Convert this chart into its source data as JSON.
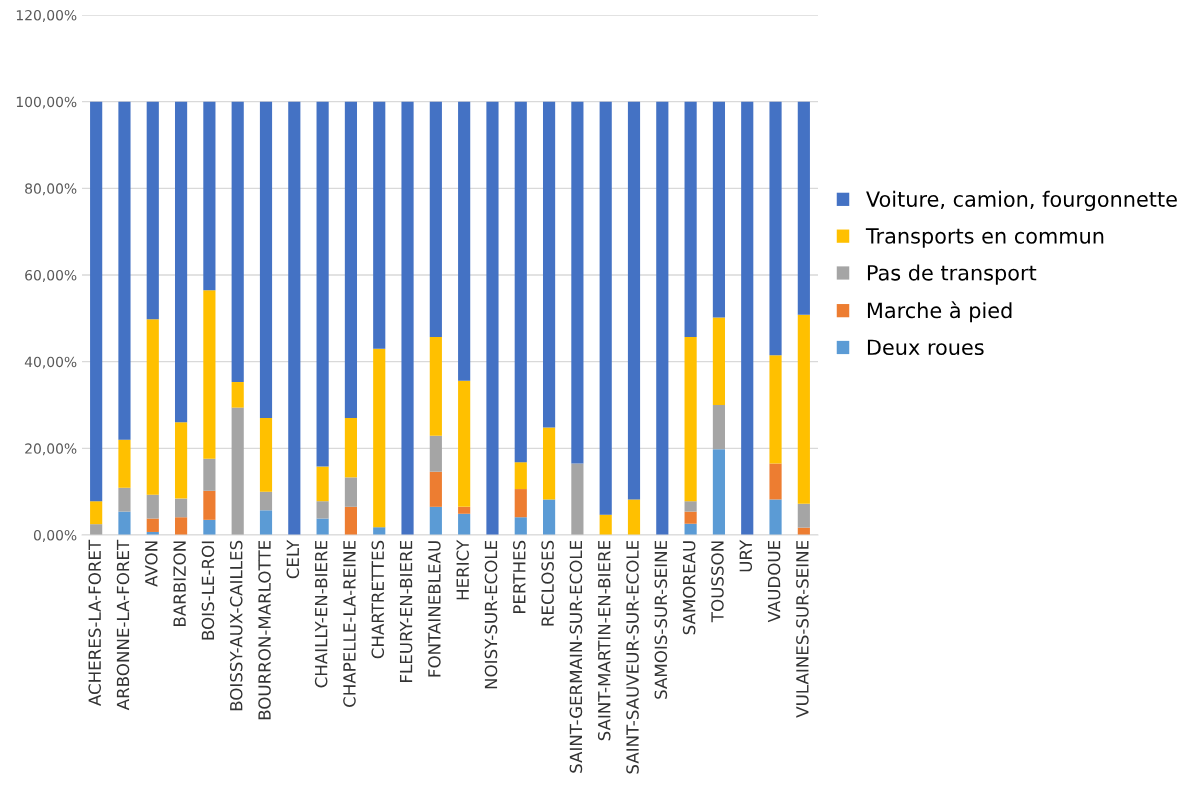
{
  "chart_data": {
    "type": "bar",
    "stacked": true,
    "grid": "y",
    "legend": "right",
    "categories": [
      "ACHERES-LA-FORET",
      "ARBONNE-LA-FORET",
      "AVON",
      "BARBIZON",
      "BOIS-LE-ROI",
      "BOISSY-AUX-CAILLES",
      "BOURRON-MARLOTTE",
      "CELY",
      "CHAILLY-EN-BIERE",
      "CHAPELLE-LA-REINE",
      "CHARTRETTES",
      "FLEURY-EN-BIERE",
      "FONTAINEBLEAU",
      "HERICY",
      "NOISY-SUR-ECOLE",
      "PERTHES",
      "RECLOSES",
      "SAINT-GERMAIN-SUR-ECOLE",
      "SAINT-MARTIN-EN-BIERE",
      "SAINT-SAUVEUR-SUR-ECOLE",
      "SAMOIS-SUR-SEINE",
      "SAMOREAU",
      "TOUSSON",
      "URY",
      "VAUDOUE",
      "VULAINES-SUR-SEINE"
    ],
    "series": [
      {
        "name": "Deux roues",
        "color": "#5b9bd5",
        "values": [
          0,
          5.4,
          0.7,
          0,
          3.5,
          0,
          5.7,
          0,
          3.8,
          0,
          1.8,
          0,
          6.5,
          4.9,
          0,
          4.1,
          8.2,
          0,
          0,
          0,
          0,
          2.6,
          19.8,
          0,
          8.2,
          0
        ]
      },
      {
        "name": "Marche à pied",
        "color": "#ed7d31",
        "values": [
          0,
          0,
          3.1,
          4.1,
          6.7,
          0,
          0,
          0,
          0,
          6.5,
          0,
          0,
          8.1,
          1.6,
          0,
          6.5,
          0,
          0,
          0,
          0,
          0,
          2.8,
          0,
          0,
          8.3,
          1.7
        ]
      },
      {
        "name": "Pas de transport",
        "color": "#a5a5a5",
        "values": [
          2.5,
          5.5,
          5.5,
          4.3,
          7.4,
          29.4,
          4.3,
          0,
          4.0,
          6.8,
          0,
          0,
          8.3,
          0,
          0,
          0,
          0,
          16.5,
          0,
          0,
          0,
          2.4,
          10.2,
          0,
          0,
          5.5
        ]
      },
      {
        "name": "Transports en commun",
        "color": "#ffc000",
        "values": [
          5.3,
          11.1,
          40.5,
          17.6,
          38.9,
          5.9,
          17.0,
          0,
          8.0,
          13.7,
          41.2,
          0,
          22.8,
          29.1,
          0,
          6.2,
          16.6,
          0,
          4.7,
          8.2,
          0,
          37.9,
          20.2,
          0,
          25.0,
          43.6
        ]
      },
      {
        "name": "Voiture, camion, fourgonnette",
        "color": "#4472c4",
        "values": [
          92.2,
          78.0,
          50.2,
          74.0,
          43.5,
          64.7,
          73.0,
          100,
          84.2,
          73.0,
          57.0,
          100,
          54.3,
          64.4,
          100,
          83.2,
          75.2,
          83.5,
          95.3,
          91.8,
          100,
          54.3,
          49.8,
          100,
          58.5,
          49.2
        ]
      }
    ],
    "ylim": [
      0,
      120
    ],
    "yticks": [
      {
        "value": 0,
        "label": "0,00%"
      },
      {
        "value": 20,
        "label": "20,00%"
      },
      {
        "value": 40,
        "label": "40,00%"
      },
      {
        "value": 60,
        "label": "60,00%"
      },
      {
        "value": 80,
        "label": "80,00%"
      },
      {
        "value": 100,
        "label": "100,00%"
      },
      {
        "value": 120,
        "label": "120,00%"
      }
    ]
  }
}
